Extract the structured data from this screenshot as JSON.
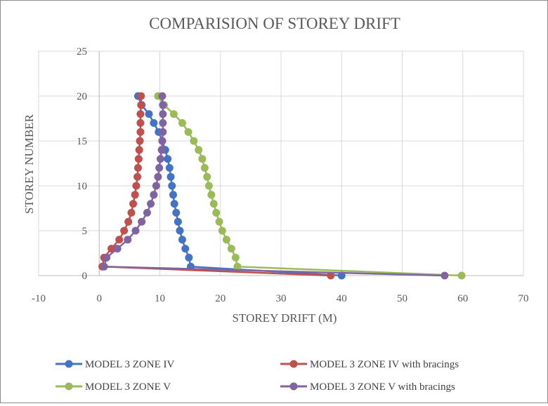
{
  "chart_data": {
    "type": "scatter",
    "title": "COMPARISION OF STOREY DRIFT",
    "xlabel": "STOREY DRIFT (M)",
    "ylabel": "STOREY NUMBER",
    "xlim": [
      -10,
      70
    ],
    "ylim": [
      0,
      25
    ],
    "xticks": [
      "-10",
      "0",
      "10",
      "20",
      "30",
      "40",
      "50",
      "60",
      "70"
    ],
    "yticks": [
      "0",
      "5",
      "10",
      "15",
      "20",
      "25"
    ],
    "grid": true,
    "legend_position": "bottom",
    "series": [
      {
        "name": "MODEL 3 ZONE  IV",
        "color": "#4472c4",
        "x": [
          40.0,
          15.1,
          14.8,
          14.2,
          13.7,
          13.3,
          13.0,
          12.7,
          12.4,
          12.2,
          12.0,
          11.8,
          11.6,
          11.3,
          10.9,
          10.4,
          9.8,
          9.0,
          8.2,
          7.0,
          6.4
        ],
        "y": [
          0,
          1,
          2,
          3,
          4,
          5,
          6,
          7,
          8,
          9,
          10,
          11,
          12,
          13,
          14,
          15,
          16,
          17,
          18,
          19,
          20
        ]
      },
      {
        "name": "MODEL 3 ZONE  IV with bracings",
        "color": "#c0504d",
        "x": [
          38.2,
          0.5,
          0.8,
          2.0,
          3.3,
          4.1,
          4.8,
          5.3,
          5.6,
          5.9,
          6.1,
          6.3,
          6.4,
          6.5,
          6.6,
          6.7,
          6.8,
          6.8,
          6.8,
          6.9,
          6.9
        ],
        "y": [
          0,
          1,
          2,
          3,
          4,
          5,
          6,
          7,
          8,
          9,
          10,
          11,
          12,
          13,
          14,
          15,
          16,
          17,
          18,
          19,
          20
        ]
      },
      {
        "name": "MODEL 3 ZONE V",
        "color": "#9bbb59",
        "x": [
          59.8,
          22.8,
          22.5,
          21.8,
          21.0,
          20.3,
          19.8,
          19.3,
          18.9,
          18.5,
          18.1,
          17.8,
          17.4,
          17.0,
          16.4,
          15.6,
          14.7,
          13.7,
          12.3,
          10.7,
          9.7
        ],
        "y": [
          0,
          1,
          2,
          3,
          4,
          5,
          6,
          7,
          8,
          9,
          10,
          11,
          12,
          13,
          14,
          15,
          16,
          17,
          18,
          19,
          20
        ]
      },
      {
        "name": "MODEL 3 ZONE V with bracings",
        "color": "#8064a2",
        "x": [
          57.0,
          0.8,
          1.2,
          3.0,
          4.7,
          6.0,
          7.0,
          7.9,
          8.5,
          9.0,
          9.4,
          9.7,
          9.9,
          10.1,
          10.3,
          10.4,
          10.5,
          10.5,
          10.5,
          10.5,
          10.4
        ],
        "y": [
          0,
          1,
          2,
          3,
          4,
          5,
          6,
          7,
          8,
          9,
          10,
          11,
          12,
          13,
          14,
          15,
          16,
          17,
          18,
          19,
          20
        ]
      }
    ]
  }
}
